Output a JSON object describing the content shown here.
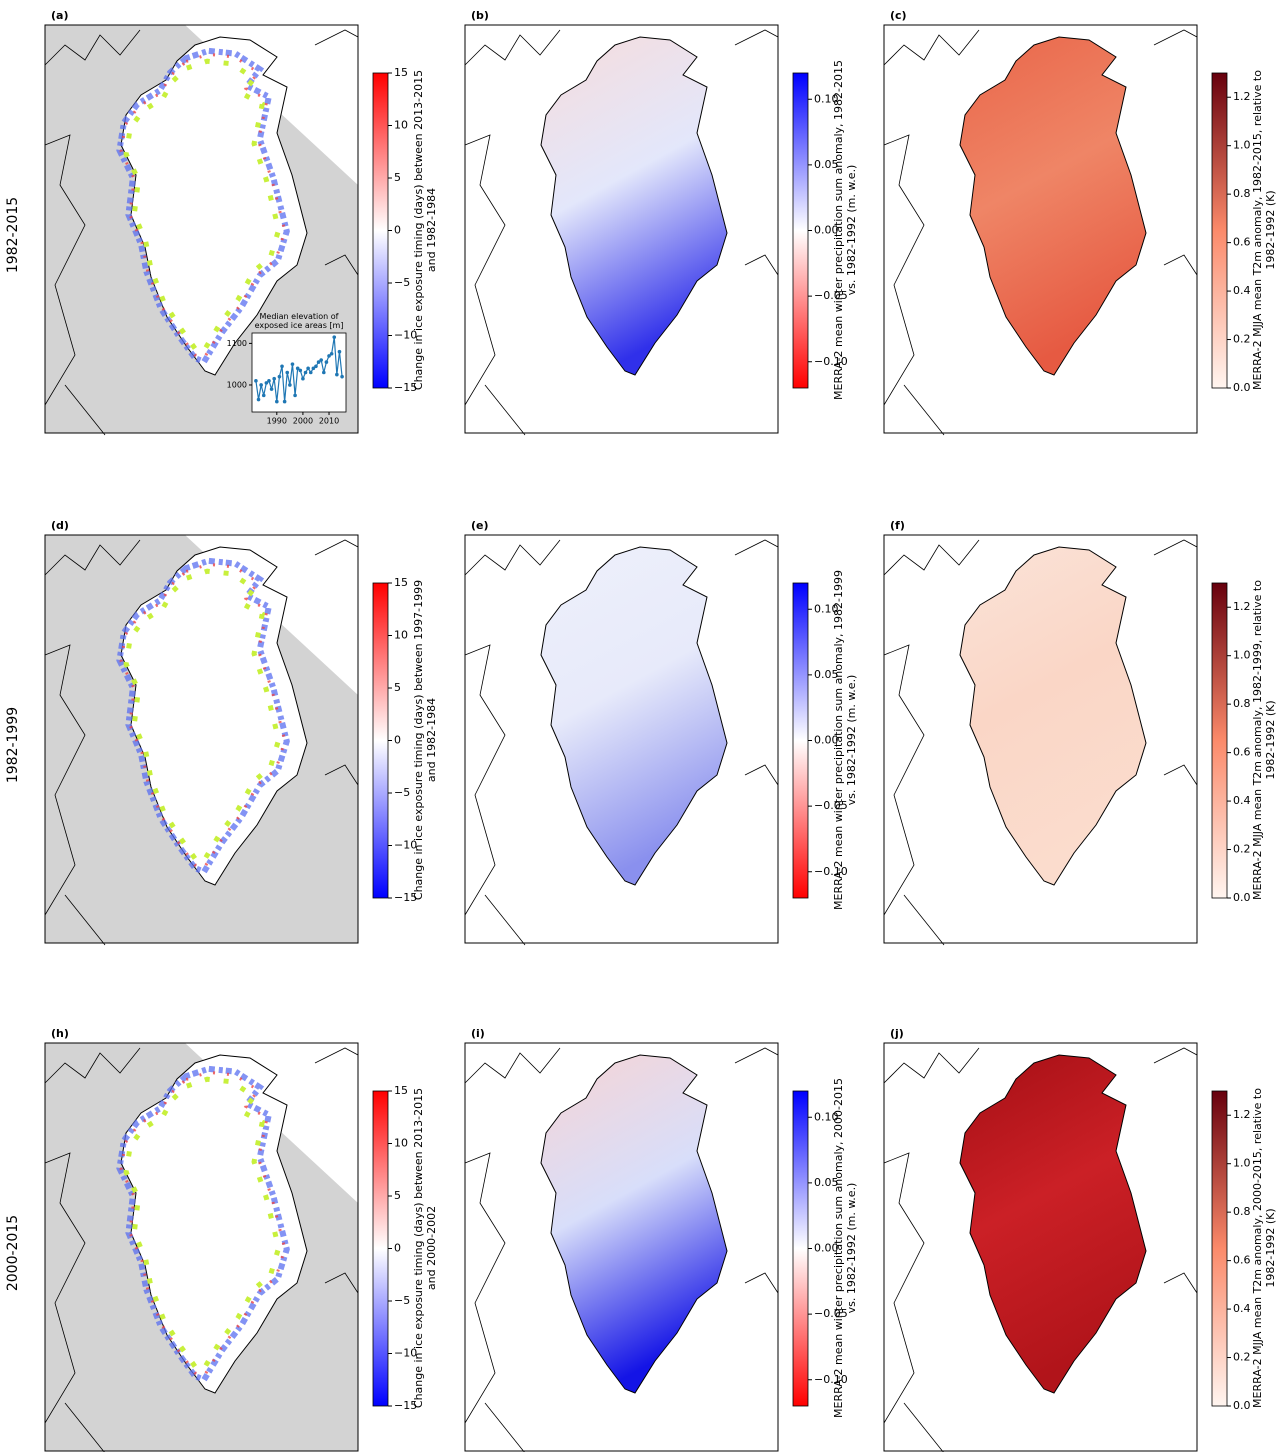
{
  "row_labels": [
    "1982-2015",
    "1982-1999",
    "2000-2015"
  ],
  "panels": [
    {
      "label": "(a)",
      "kind": "exposure",
      "colorbar": {
        "label": "Change in ice exposure timing (days) between 2013-2015 and 1982-1984",
        "lim": [
          -15,
          15
        ],
        "colors": [
          "#0000ff",
          "#ffffff",
          "#ff0000"
        ],
        "ticks": [
          {
            "value": -15,
            "label": "−15"
          },
          {
            "value": -10,
            "label": "−10"
          },
          {
            "value": -5,
            "label": "−5"
          },
          0,
          5,
          10,
          15
        ]
      }
    },
    {
      "label": "(b)",
      "kind": "field",
      "shading": [
        "#f6dcdc",
        "#e3e7fb",
        "#3030ea"
      ],
      "colorbar": {
        "label": "MERRA-2 mean winter precipitation sum anomaly, 1982-2015 vs. 1982-1992 (m. w.e.)",
        "lim": [
          -0.12,
          0.12
        ],
        "colors": [
          "#ff0000",
          "#ffffff",
          "#0000ff"
        ],
        "ticks": [
          {
            "value": -0.1,
            "label": "−0.10"
          },
          {
            "value": -0.05,
            "label": "−0.05"
          },
          {
            "value": 0,
            "label": "0.00"
          },
          0.05,
          {
            "value": 0.1,
            "label": "0.10"
          }
        ]
      }
    },
    {
      "label": "(c)",
      "kind": "field",
      "shading": [
        "#e9664a",
        "#ef8566",
        "#e65a42"
      ],
      "colorbar": {
        "label": "MERRA-2 MJJA mean T2m anomaly, 1982-2015, relative to 1982-1992 (K)",
        "lim": [
          0,
          1.3
        ],
        "colors": [
          "#fff5f0",
          "#fb8a6a",
          "#67000d"
        ],
        "ticks": [
          {
            "value": 0,
            "label": "0.0"
          },
          0.2,
          0.4,
          0.6,
          0.8,
          {
            "value": 1,
            "label": "1.0"
          },
          1.2
        ]
      }
    },
    {
      "label": "(d)",
      "kind": "exposure",
      "colorbar": {
        "label": "Change in ice exposure timing (days) between 1997-1999 and 1982-1984",
        "lim": [
          -15,
          15
        ],
        "colors": [
          "#0000ff",
          "#ffffff",
          "#ff0000"
        ],
        "ticks": [
          {
            "value": -15,
            "label": "−15"
          },
          {
            "value": -10,
            "label": "−10"
          },
          {
            "value": -5,
            "label": "−5"
          },
          0,
          5,
          10,
          15
        ]
      }
    },
    {
      "label": "(e)",
      "kind": "field",
      "shading": [
        "#eef0fb",
        "#e7eafa",
        "#8a90ee"
      ],
      "colorbar": {
        "label": "MERRA-2 mean winter precipitation sum anomaly, 1982-1999 vs. 1982-1992 (m. w.e.)",
        "lim": [
          -0.12,
          0.12
        ],
        "colors": [
          "#ff0000",
          "#ffffff",
          "#0000ff"
        ],
        "ticks": [
          {
            "value": -0.1,
            "label": "−0.10"
          },
          {
            "value": -0.05,
            "label": "−0.05"
          },
          {
            "value": 0,
            "label": "0.00"
          },
          0.05,
          {
            "value": 0.1,
            "label": "0.10"
          }
        ]
      }
    },
    {
      "label": "(f)",
      "kind": "field",
      "shading": [
        "#fbe3d8",
        "#fad6c6",
        "#fbdccd"
      ],
      "colorbar": {
        "label": "MERRA-2 MJJA mean T2m anomaly, 1982-1999, relative to 1982-1992 (K)",
        "lim": [
          0,
          1.3
        ],
        "colors": [
          "#fff5f0",
          "#fb8a6a",
          "#67000d"
        ],
        "ticks": [
          {
            "value": 0,
            "label": "0.0"
          },
          0.2,
          0.4,
          0.6,
          0.8,
          {
            "value": 1,
            "label": "1.0"
          },
          1.2
        ]
      }
    },
    {
      "label": "(h)",
      "kind": "exposure",
      "colorbar": {
        "label": "Change in ice exposure timing (days) between 2013-2015 and 2000-2002",
        "lim": [
          -15,
          15
        ],
        "colors": [
          "#0000ff",
          "#ffffff",
          "#ff0000"
        ],
        "ticks": [
          {
            "value": -15,
            "label": "−15"
          },
          {
            "value": -10,
            "label": "−10"
          },
          {
            "value": -5,
            "label": "−5"
          },
          0,
          5,
          10,
          15
        ]
      }
    },
    {
      "label": "(i)",
      "kind": "field",
      "shading": [
        "#f7d4d4",
        "#d8defa",
        "#1414e6"
      ],
      "colorbar": {
        "label": "MERRA-2 mean winter precipitation sum anomaly, 2000-2015 vs. 1982-1992 (m. w.e.)",
        "lim": [
          -0.12,
          0.12
        ],
        "colors": [
          "#ff0000",
          "#ffffff",
          "#0000ff"
        ],
        "ticks": [
          {
            "value": -0.1,
            "label": "−0.10"
          },
          {
            "value": -0.05,
            "label": "−0.05"
          },
          {
            "value": 0,
            "label": "0.00"
          },
          0.05,
          {
            "value": 0.1,
            "label": "0.10"
          }
        ]
      }
    },
    {
      "label": "(j)",
      "kind": "field",
      "shading": [
        "#a50f15",
        "#cb2026",
        "#b1141a"
      ],
      "colorbar": {
        "label": "MERRA-2 MJJA mean T2m anomaly, 2000-2015, relative to 1982-1992 (K)",
        "lim": [
          0,
          1.3
        ],
        "colors": [
          "#fff5f0",
          "#fb8a6a",
          "#67000d"
        ],
        "ticks": [
          {
            "value": 0,
            "label": "0.0"
          },
          0.2,
          0.4,
          0.6,
          0.8,
          {
            "value": 1,
            "label": "1.0"
          },
          1.2
        ]
      }
    }
  ],
  "chart_data": {
    "type": "line",
    "title": "Median elevation of exposed ice areas [m]",
    "color": "#1f77b4",
    "x": [
      1982,
      1983,
      1984,
      1985,
      1986,
      1987,
      1988,
      1989,
      1990,
      1991,
      1992,
      1993,
      1994,
      1995,
      1996,
      1997,
      1998,
      1999,
      2000,
      2001,
      2002,
      2003,
      2004,
      2005,
      2006,
      2007,
      2008,
      2009,
      2010,
      2011,
      2012,
      2013,
      2014,
      2015
    ],
    "values": [
      1010,
      965,
      1000,
      975,
      1005,
      1010,
      990,
      1015,
      960,
      1020,
      1045,
      960,
      1030,
      1000,
      1050,
      975,
      1040,
      1035,
      1015,
      1030,
      1040,
      1030,
      1040,
      1045,
      1055,
      1060,
      1030,
      1055,
      1070,
      1075,
      1115,
      1025,
      1080,
      1020
    ],
    "xlim": [
      1980.5,
      2016.5
    ],
    "ylim": [
      935,
      1125
    ],
    "xticks": [
      1990,
      2000,
      2010
    ],
    "yticks": [
      1000,
      1100
    ]
  }
}
